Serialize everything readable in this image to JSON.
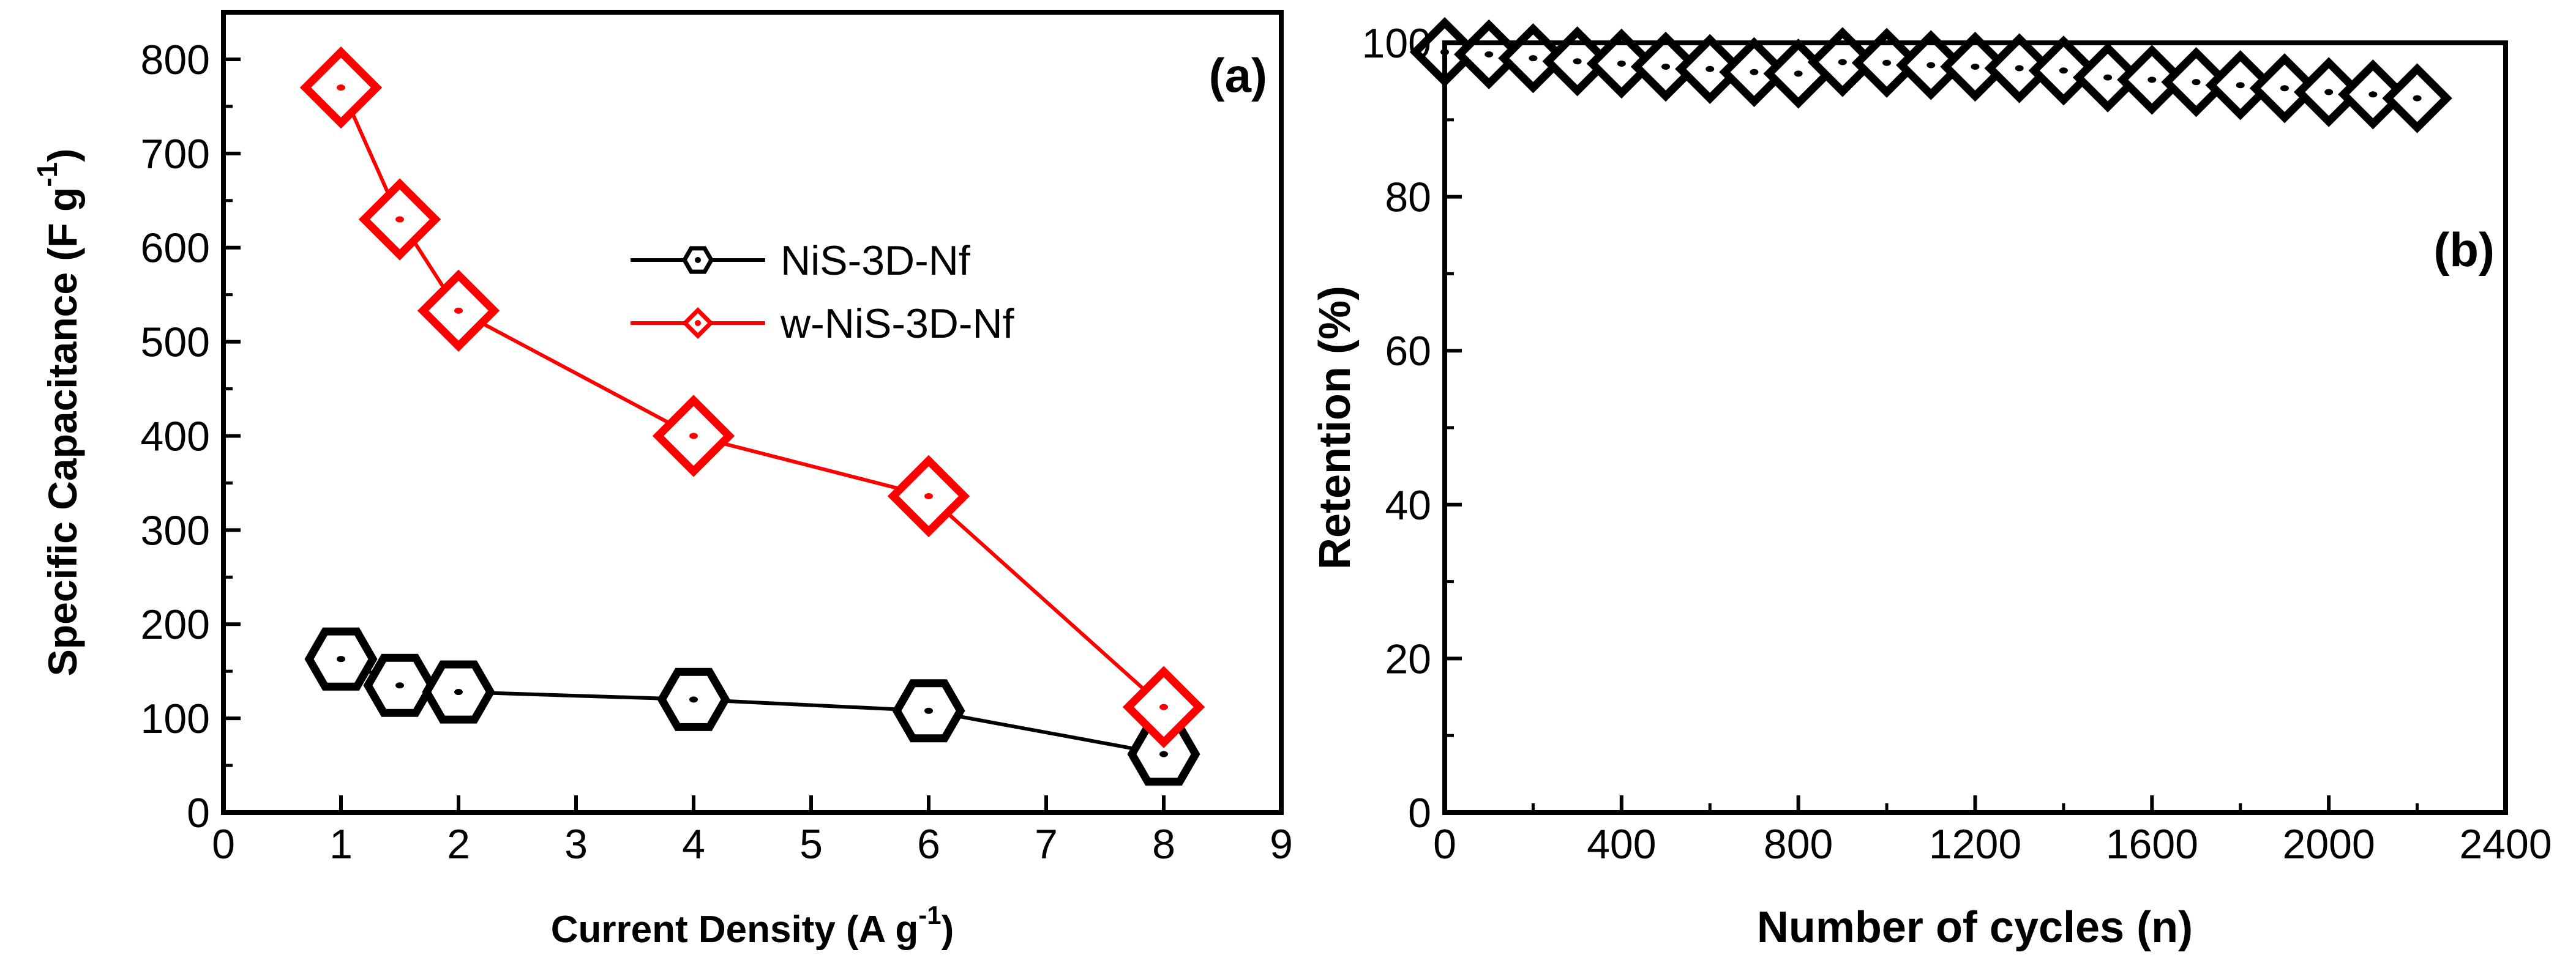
{
  "chart_data": [
    {
      "type": "line",
      "panel_label": "(a)",
      "xlabel": "Current Density (A g",
      "xlabel_superscript": "-1",
      "xlabel_suffix": ")",
      "ylabel": "Specific Capacitance (F g",
      "ylabel_superscript": "-1",
      "ylabel_suffix": ")",
      "xlim": [
        0,
        9
      ],
      "ylim": [
        0,
        850
      ],
      "xticks": [
        0,
        1,
        2,
        3,
        4,
        5,
        6,
        7,
        8,
        9
      ],
      "yticks": [
        0,
        100,
        200,
        300,
        400,
        500,
        600,
        700,
        800
      ],
      "legend_position": "center",
      "series": [
        {
          "name": "NiS-3D-Nf",
          "marker": "hexagon",
          "color": "#000000",
          "x": [
            1,
            1.5,
            2,
            4,
            6,
            8
          ],
          "y": [
            163,
            135,
            128,
            120,
            108,
            62
          ]
        },
        {
          "name": "w-NiS-3D-Nf",
          "marker": "diamond",
          "color": "#ff0000",
          "x": [
            1,
            1.5,
            2,
            4,
            6,
            8
          ],
          "y": [
            770,
            630,
            533,
            400,
            336,
            112
          ]
        }
      ]
    },
    {
      "type": "scatter",
      "panel_label": "(b)",
      "xlabel": "Number of cycles (n)",
      "ylabel": "Retention (%)",
      "xlim": [
        0,
        2400
      ],
      "ylim": [
        0,
        100
      ],
      "xticks": [
        0,
        400,
        800,
        1200,
        1600,
        2000,
        2400
      ],
      "yticks": [
        0,
        20,
        40,
        60,
        80,
        100
      ],
      "series": [
        {
          "name": "Retention",
          "marker": "diamond",
          "color": "#000000",
          "x": [
            0,
            100,
            200,
            300,
            400,
            500,
            600,
            700,
            800,
            900,
            1000,
            1100,
            1200,
            1300,
            1400,
            1500,
            1600,
            1700,
            1800,
            1900,
            2000,
            2100,
            2200
          ],
          "y": [
            98.8,
            98.5,
            98.0,
            97.6,
            97.3,
            96.9,
            96.6,
            96.2,
            96.0,
            97.5,
            97.4,
            97.1,
            96.9,
            96.7,
            96.4,
            95.5,
            95.2,
            94.9,
            94.5,
            94.1,
            93.6,
            93.3,
            92.8
          ]
        }
      ]
    }
  ]
}
